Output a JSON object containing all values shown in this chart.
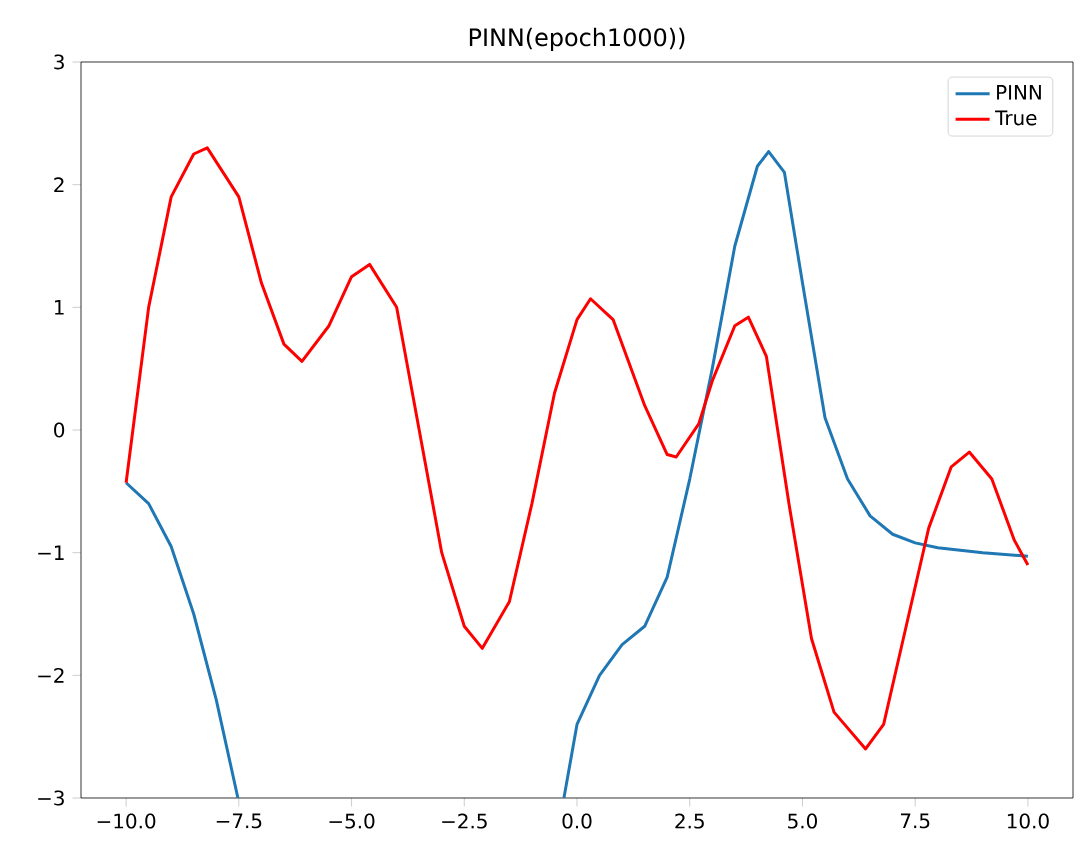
{
  "chart_data": {
    "type": "line",
    "title": "PINN(epoch1000))",
    "legend": "top right",
    "grid": false,
    "line_style": "solid",
    "marker": "none",
    "xlim": [
      -11,
      11
    ],
    "ylim": [
      -3,
      3
    ],
    "xticks": [
      {
        "value": -10,
        "label": "−10.0"
      },
      {
        "value": -7.5,
        "label": "−7.5"
      },
      {
        "value": -5,
        "label": "−5.0"
      },
      {
        "value": -2.5,
        "label": "−2.5"
      },
      {
        "value": 0,
        "label": "0.0"
      },
      {
        "value": 2.5,
        "label": "2.5"
      },
      {
        "value": 5,
        "label": "5.0"
      },
      {
        "value": 7.5,
        "label": "7.5"
      },
      {
        "value": 10,
        "label": "10.0"
      }
    ],
    "yticks": [
      {
        "value": -3,
        "label": "−3"
      },
      {
        "value": -2,
        "label": "−2"
      },
      {
        "value": -1,
        "label": "−1"
      },
      0,
      1,
      2,
      3
    ],
    "series": [
      {
        "name": "PINN",
        "color": "#1f77b4",
        "x": [
          -10,
          -9.5,
          -9,
          -8.5,
          -8,
          -7.52,
          -4,
          -0.29,
          0,
          0.5,
          1,
          1.5,
          2,
          2.5,
          3,
          3.5,
          4,
          4.25,
          4.6,
          5,
          5.5,
          6,
          6.5,
          7,
          7.5,
          8,
          9,
          10
        ],
        "values": [
          -0.43,
          -0.6,
          -0.95,
          -1.5,
          -2.2,
          -3,
          null,
          -3,
          -2.4,
          -2.0,
          -1.75,
          -1.6,
          -1.2,
          -0.4,
          0.5,
          1.5,
          2.15,
          2.27,
          2.1,
          1.2,
          0.1,
          -0.4,
          -0.7,
          -0.85,
          -0.92,
          -0.96,
          -1.0,
          -1.03
        ]
      },
      {
        "name": "True",
        "color": "#ff0000",
        "x": [
          -10,
          -9.5,
          -9,
          -8.5,
          -8.2,
          -7.5,
          -7,
          -6.5,
          -6.1,
          -5.5,
          -5,
          -4.6,
          -4,
          -3.5,
          -3,
          -2.5,
          -2.1,
          -1.5,
          -1,
          -0.5,
          0,
          0.3,
          0.8,
          1.5,
          2,
          2.2,
          2.7,
          3,
          3.5,
          3.8,
          4.2,
          4.7,
          5.2,
          5.7,
          6.4,
          6.8,
          7.3,
          7.8,
          8.3,
          8.7,
          9.2,
          9.7,
          10
        ],
        "values": [
          -0.43,
          1.0,
          1.9,
          2.25,
          2.3,
          1.9,
          1.2,
          0.7,
          0.56,
          0.85,
          1.25,
          1.35,
          1.0,
          0.0,
          -1.0,
          -1.6,
          -1.78,
          -1.4,
          -0.6,
          0.3,
          0.9,
          1.07,
          0.9,
          0.2,
          -0.2,
          -0.22,
          0.05,
          0.4,
          0.85,
          0.92,
          0.6,
          -0.6,
          -1.7,
          -2.3,
          -2.6,
          -2.4,
          -1.6,
          -0.8,
          -0.3,
          -0.18,
          -0.4,
          -0.9,
          -1.1
        ]
      }
    ]
  }
}
